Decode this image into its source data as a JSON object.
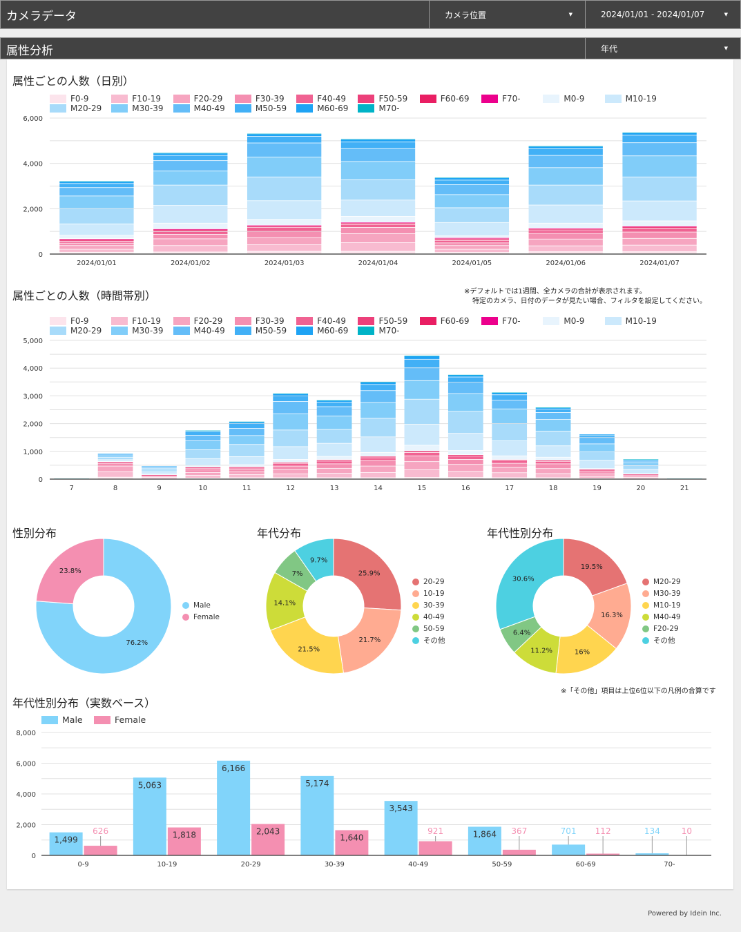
{
  "header": {
    "title": "カメラデータ",
    "camera_dropdown": "カメラ位置",
    "date_dropdown": "2024/01/01 - 2024/01/07"
  },
  "section": {
    "title": "属性分析",
    "group_dropdown": "年代"
  },
  "attribute_legend": [
    {
      "label": "F0-9",
      "color": "#fce4ec"
    },
    {
      "label": "F10-19",
      "color": "#f8bbd0"
    },
    {
      "label": "F20-29",
      "color": "#f6a5c0"
    },
    {
      "label": "F30-39",
      "color": "#f48fb1"
    },
    {
      "label": "F40-49",
      "color": "#f06292"
    },
    {
      "label": "F50-59",
      "color": "#ec407a"
    },
    {
      "label": "F60-69",
      "color": "#e91e63"
    },
    {
      "label": "F70-",
      "color": "#ec008c"
    },
    {
      "label": "M0-9",
      "color": "#e8f4fd"
    },
    {
      "label": "M10-19",
      "color": "#cce9fc"
    },
    {
      "label": "M20-29",
      "color": "#a8dbfa"
    },
    {
      "label": "M30-39",
      "color": "#81cdf9"
    },
    {
      "label": "M40-49",
      "color": "#64bdf8"
    },
    {
      "label": "M50-59",
      "color": "#42b0f6"
    },
    {
      "label": "M60-69",
      "color": "#1ea3f4"
    },
    {
      "label": "M70-",
      "color": "#00b3c7"
    }
  ],
  "notes": {
    "default_line1": "※デフォルトでは1週間、全カメラの合計が表示されます。",
    "default_line2": "特定のカメラ、日付のデータが見たい場合、フィルタを設定してください。",
    "others": "※「その他」項目は上位6位以下の凡例の合算です"
  },
  "footer": "Powered by Idein Inc.",
  "chart_data": [
    {
      "id": "daily",
      "type": "bar",
      "stacked": true,
      "title": "属性ごとの人数（日別）",
      "categories": [
        "2024/01/01",
        "2024/01/02",
        "2024/01/03",
        "2024/01/04",
        "2024/01/05",
        "2024/01/06",
        "2024/01/07"
      ],
      "ylim": [
        0,
        6000
      ],
      "yticks": [
        "0",
        "2,000",
        "4,000",
        "6,000"
      ],
      "ytick_values": [
        0,
        2000,
        4000,
        6000
      ],
      "series": [
        {
          "name": "F0-9",
          "values": [
            70,
            80,
            110,
            110,
            60,
            90,
            90
          ]
        },
        {
          "name": "F10-19",
          "values": [
            130,
            280,
            290,
            380,
            140,
            260,
            290
          ]
        },
        {
          "name": "F20-29",
          "values": [
            160,
            300,
            310,
            400,
            160,
            300,
            300
          ]
        },
        {
          "name": "F30-39",
          "values": [
            110,
            200,
            280,
            270,
            120,
            250,
            280
          ]
        },
        {
          "name": "F40-49",
          "values": [
            80,
            120,
            180,
            120,
            110,
            120,
            170
          ]
        },
        {
          "name": "F50-59",
          "values": [
            70,
            80,
            60,
            70,
            70,
            70,
            60
          ]
        },
        {
          "name": "F60-69",
          "values": [
            40,
            30,
            20,
            30,
            40,
            30,
            20
          ]
        },
        {
          "name": "F70-",
          "values": [
            10,
            10,
            10,
            10,
            10,
            10,
            10
          ]
        },
        {
          "name": "M0-9",
          "values": [
            150,
            250,
            260,
            260,
            80,
            220,
            230
          ]
        },
        {
          "name": "M10-19",
          "values": [
            500,
            780,
            820,
            720,
            590,
            800,
            880
          ]
        },
        {
          "name": "M20-29",
          "values": [
            680,
            900,
            1050,
            900,
            650,
            880,
            1060
          ]
        },
        {
          "name": "M30-39",
          "values": [
            550,
            620,
            880,
            800,
            580,
            770,
            930
          ]
        },
        {
          "name": "M40-49",
          "values": [
            370,
            460,
            620,
            570,
            440,
            540,
            580
          ]
        },
        {
          "name": "M50-59",
          "values": [
            180,
            230,
            290,
            290,
            200,
            290,
            330
          ]
        },
        {
          "name": "M60-69",
          "values": [
            90,
            100,
            110,
            120,
            100,
            110,
            110
          ]
        },
        {
          "name": "M70-",
          "values": [
            20,
            20,
            20,
            20,
            20,
            20,
            20
          ]
        }
      ]
    },
    {
      "id": "hourly",
      "type": "bar",
      "stacked": true,
      "title": "属性ごとの人数（時間帯別）",
      "categories": [
        "7",
        "8",
        "9",
        "10",
        "11",
        "12",
        "13",
        "14",
        "15",
        "16",
        "17",
        "18",
        "19",
        "20",
        "21"
      ],
      "ylim": [
        0,
        5000
      ],
      "yticks": [
        "0",
        "1,000",
        "2,000",
        "3,000",
        "4,000",
        "5,000"
      ],
      "ytick_values": [
        0,
        1000,
        2000,
        3000,
        4000,
        5000
      ],
      "series": [
        {
          "name": "F0-9",
          "values": [
            0,
            60,
            10,
            30,
            40,
            40,
            40,
            40,
            50,
            50,
            40,
            40,
            20,
            10,
            0
          ]
        },
        {
          "name": "F10-19",
          "values": [
            0,
            200,
            40,
            100,
            110,
            140,
            160,
            190,
            280,
            220,
            180,
            150,
            70,
            40,
            0
          ]
        },
        {
          "name": "F20-29",
          "values": [
            0,
            200,
            40,
            100,
            100,
            150,
            180,
            230,
            290,
            250,
            190,
            180,
            90,
            50,
            0
          ]
        },
        {
          "name": "F30-39",
          "values": [
            0,
            90,
            30,
            90,
            90,
            130,
            160,
            200,
            210,
            180,
            150,
            170,
            80,
            40,
            0
          ]
        },
        {
          "name": "F40-49",
          "values": [
            0,
            30,
            20,
            60,
            50,
            90,
            100,
            100,
            120,
            120,
            90,
            90,
            50,
            20,
            0
          ]
        },
        {
          "name": "F50-59",
          "values": [
            0,
            20,
            10,
            30,
            30,
            30,
            40,
            40,
            40,
            40,
            30,
            30,
            20,
            10,
            0
          ]
        },
        {
          "name": "F60-69",
          "values": [
            0,
            10,
            0,
            10,
            10,
            10,
            10,
            10,
            20,
            10,
            10,
            10,
            10,
            0,
            0
          ]
        },
        {
          "name": "F70-",
          "values": [
            0,
            0,
            0,
            0,
            0,
            0,
            0,
            0,
            0,
            0,
            0,
            0,
            0,
            0,
            0
          ]
        },
        {
          "name": "M0-9",
          "values": [
            0,
            20,
            20,
            60,
            80,
            110,
            120,
            140,
            200,
            150,
            140,
            110,
            30,
            20,
            0
          ]
        },
        {
          "name": "M10-19",
          "values": [
            0,
            60,
            80,
            250,
            290,
            460,
            470,
            560,
            760,
            620,
            540,
            410,
            300,
            150,
            0
          ]
        },
        {
          "name": "M20-29",
          "values": [
            0,
            80,
            70,
            320,
            440,
            600,
            500,
            670,
            900,
            790,
            620,
            530,
            300,
            140,
            0
          ]
        },
        {
          "name": "M30-39",
          "values": [
            0,
            60,
            50,
            320,
            320,
            580,
            480,
            570,
            670,
            640,
            530,
            420,
            290,
            100,
            0
          ]
        },
        {
          "name": "M40-49",
          "values": [
            0,
            40,
            40,
            200,
            260,
            450,
            340,
            430,
            460,
            410,
            310,
            250,
            230,
            60,
            0
          ]
        },
        {
          "name": "M50-59",
          "values": [
            0,
            20,
            30,
            130,
            180,
            200,
            160,
            220,
            310,
            190,
            200,
            120,
            70,
            40,
            0
          ]
        },
        {
          "name": "M60-69",
          "values": [
            0,
            20,
            20,
            40,
            60,
            80,
            70,
            90,
            120,
            80,
            80,
            60,
            50,
            20,
            0
          ]
        },
        {
          "name": "M70-",
          "values": [
            20,
            0,
            0,
            10,
            10,
            10,
            10,
            10,
            10,
            10,
            10,
            10,
            0,
            10,
            20
          ]
        }
      ]
    },
    {
      "id": "gender",
      "type": "pie",
      "donut": true,
      "title": "性別分布",
      "labels": [
        "Male",
        "Female"
      ],
      "values": [
        76.2,
        23.8
      ],
      "value_labels": [
        "76.2%",
        "23.8%"
      ],
      "colors": [
        "#81d4fa",
        "#f48fb1"
      ],
      "legend": "right"
    },
    {
      "id": "age",
      "type": "pie",
      "donut": true,
      "title": "年代分布",
      "labels": [
        "20-29",
        "10-19",
        "30-39",
        "40-49",
        "50-59",
        "その他"
      ],
      "values": [
        25.9,
        21.7,
        21.5,
        14.1,
        7.0,
        9.7
      ],
      "value_labels": [
        "25.9%",
        "21.7%",
        "21.5%",
        "14.1%",
        "7%",
        "9.7%"
      ],
      "colors": [
        "#e57373",
        "#ffab91",
        "#ffd54f",
        "#cddc39",
        "#81c784",
        "#4dd0e1"
      ],
      "legend": "right"
    },
    {
      "id": "age_gender",
      "type": "pie",
      "donut": true,
      "title": "年代性別分布",
      "labels": [
        "M20-29",
        "M30-39",
        "M10-19",
        "M40-49",
        "F20-29",
        "その他"
      ],
      "values": [
        19.5,
        16.3,
        16.0,
        11.2,
        6.4,
        30.6
      ],
      "value_labels": [
        "19.5%",
        "16.3%",
        "16%",
        "11.2%",
        "6.4%",
        "30.6%"
      ],
      "colors": [
        "#e57373",
        "#ffab91",
        "#ffd54f",
        "#cddc39",
        "#81c784",
        "#4dd0e1"
      ],
      "legend": "right"
    },
    {
      "id": "age_gender_count",
      "type": "bar",
      "stacked": false,
      "title": "年代性別分布（実数ベース）",
      "categories": [
        "0-9",
        "10-19",
        "20-29",
        "30-39",
        "40-49",
        "50-59",
        "60-69",
        "70-"
      ],
      "ylim": [
        0,
        8000
      ],
      "yticks": [
        "0",
        "2,000",
        "4,000",
        "6,000",
        "8,000"
      ],
      "ytick_values": [
        0,
        2000,
        4000,
        6000,
        8000
      ],
      "series": [
        {
          "name": "Male",
          "color": "#81d4fa",
          "values": [
            1499,
            5063,
            6166,
            5174,
            3543,
            1864,
            701,
            134
          ],
          "value_labels": [
            "1,499",
            "5,063",
            "6,166",
            "5,174",
            "3,543",
            "1,864",
            "701",
            "134"
          ]
        },
        {
          "name": "Female",
          "color": "#f48fb1",
          "values": [
            626,
            1818,
            2043,
            1640,
            921,
            367,
            112,
            10
          ],
          "value_labels": [
            "626",
            "1,818",
            "2,043",
            "1,640",
            "921",
            "367",
            "112",
            "10"
          ]
        }
      ],
      "legend": "top-left"
    }
  ]
}
